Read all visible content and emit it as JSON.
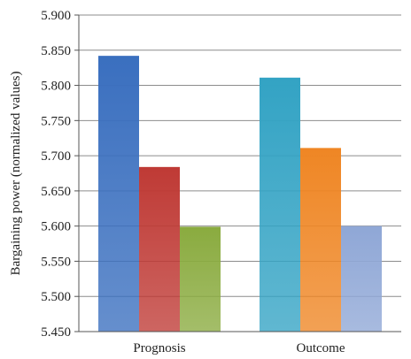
{
  "chart_data": {
    "type": "bar",
    "categories": [
      "Prognosis",
      "Outcome"
    ],
    "bars_per_category": 3,
    "values": [
      [
        5.842,
        5.684,
        5.599
      ],
      [
        5.811,
        5.711,
        5.6
      ]
    ],
    "colors": [
      [
        "#3a6fbf",
        "#bf3a35",
        "#8aab3f"
      ],
      [
        "#33a3c4",
        "#ef8624",
        "#8fa7d6"
      ]
    ],
    "ylabel": "Bargaining power (normalized values)",
    "ylim": [
      5.45,
      5.9
    ],
    "yticks": [
      "5.450",
      "5.500",
      "5.550",
      "5.600",
      "5.650",
      "5.700",
      "5.750",
      "5.800",
      "5.850",
      "5.900"
    ],
    "grid": true
  }
}
